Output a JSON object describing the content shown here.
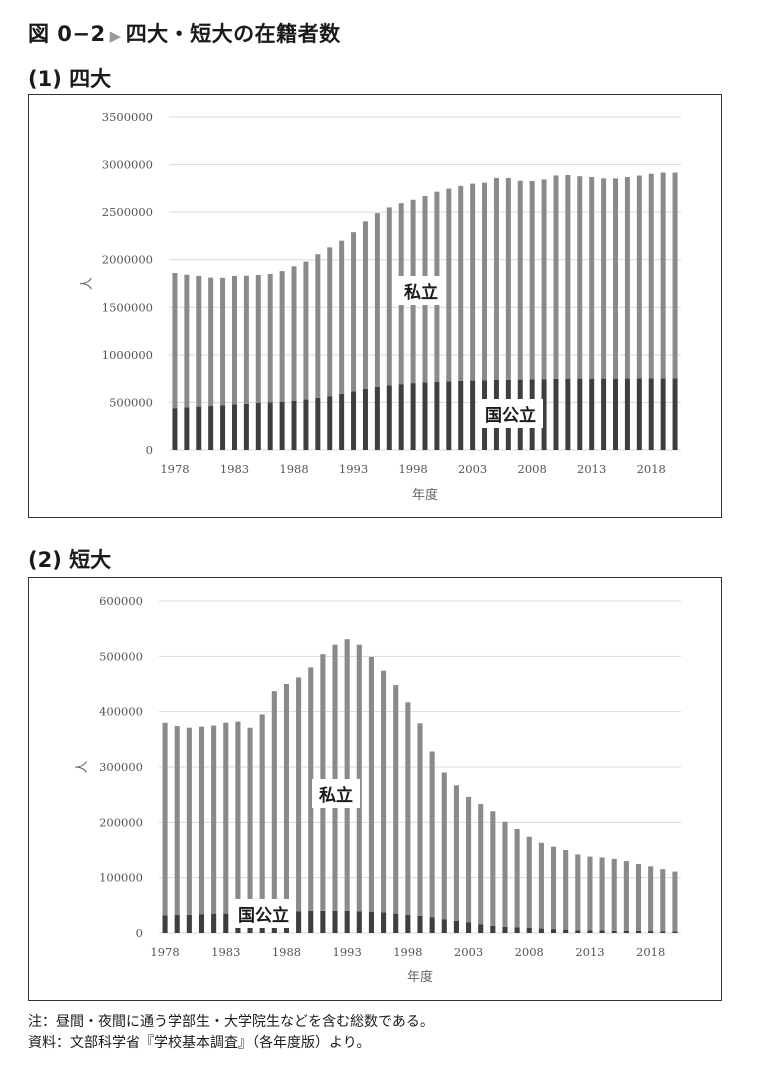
{
  "page": {
    "title_prefix": "図 0−2",
    "title_arrow": "▶",
    "title_main": "四大・短大の在籍者数",
    "notes": [
      "注：昼間・夜間に通う学部生・大学院生などを含む総数である。",
      "資料：文部科学省『学校基本調査』（各年度版）より。"
    ]
  },
  "chart_data": [
    {
      "type": "bar",
      "stacked": true,
      "section_title": "(1) 四大",
      "xlabel": "年度",
      "ylabel": "人",
      "ylim": [
        0,
        3500000
      ],
      "yticks": [
        0,
        500000,
        1000000,
        1500000,
        2000000,
        2500000,
        3000000,
        3500000
      ],
      "xticks": [
        "1978",
        "1983",
        "1988",
        "1993",
        "1998",
        "2003",
        "2008",
        "2013",
        "2018"
      ],
      "grid": true,
      "categories": [
        1978,
        1979,
        1980,
        1981,
        1982,
        1983,
        1984,
        1985,
        1986,
        1987,
        1988,
        1989,
        1990,
        1991,
        1992,
        1993,
        1994,
        1995,
        1996,
        1997,
        1998,
        1999,
        2000,
        2001,
        2002,
        2003,
        2004,
        2005,
        2006,
        2007,
        2008,
        2009,
        2010,
        2011,
        2012,
        2013,
        2014,
        2015,
        2016,
        2017,
        2018,
        2019,
        2020
      ],
      "series": [
        {
          "name": "国公立",
          "color": "#3e3e3e",
          "values": [
            440000,
            448000,
            456000,
            462000,
            470000,
            478000,
            486000,
            494000,
            500000,
            508000,
            518000,
            530000,
            548000,
            566000,
            590000,
            616000,
            642000,
            664000,
            680000,
            692000,
            703000,
            712000,
            718000,
            722000,
            726000,
            730000,
            733000,
            736000,
            738000,
            740000,
            742000,
            744000,
            748000,
            750000,
            750000,
            750000,
            750000,
            750000,
            751000,
            752000,
            752000,
            753000,
            752000
          ]
        },
        {
          "name": "私立",
          "color": "#8a8a8a",
          "values": [
            1420000,
            1394000,
            1374000,
            1350000,
            1340000,
            1352000,
            1346000,
            1346000,
            1350000,
            1372000,
            1412000,
            1450000,
            1510000,
            1564000,
            1610000,
            1674000,
            1762000,
            1826000,
            1870000,
            1902000,
            1927000,
            1958000,
            1997000,
            2026000,
            2050000,
            2070000,
            2077000,
            2124000,
            2121000,
            2090000,
            2086000,
            2100000,
            2138000,
            2140000,
            2128000,
            2120000,
            2105000,
            2105000,
            2119000,
            2133000,
            2152000,
            2163000,
            2164000
          ]
        }
      ]
    },
    {
      "type": "bar",
      "stacked": true,
      "section_title": "(2) 短大",
      "xlabel": "年度",
      "ylabel": "人",
      "ylim": [
        0,
        600000
      ],
      "yticks": [
        0,
        100000,
        200000,
        300000,
        400000,
        500000,
        600000
      ],
      "xticks": [
        "1978",
        "1983",
        "1988",
        "1993",
        "1998",
        "2003",
        "2008",
        "2013",
        "2018"
      ],
      "grid": true,
      "categories": [
        1978,
        1979,
        1980,
        1981,
        1982,
        1983,
        1984,
        1985,
        1986,
        1987,
        1988,
        1989,
        1990,
        1991,
        1992,
        1993,
        1994,
        1995,
        1996,
        1997,
        1998,
        1999,
        2000,
        2001,
        2002,
        2003,
        2004,
        2005,
        2006,
        2007,
        2008,
        2009,
        2010,
        2011,
        2012,
        2013,
        2014,
        2015,
        2016,
        2017,
        2018,
        2019,
        2020
      ],
      "series": [
        {
          "name": "国公立",
          "color": "#3e3e3e",
          "values": [
            32000,
            33000,
            33000,
            34000,
            35000,
            35000,
            36000,
            36000,
            36000,
            37000,
            38000,
            39000,
            40000,
            40000,
            40000,
            40000,
            39000,
            38000,
            37000,
            35000,
            33000,
            31000,
            28000,
            25000,
            22000,
            19000,
            16000,
            13000,
            11000,
            10000,
            9000,
            8000,
            7000,
            6000,
            5000,
            5000,
            4500,
            4000,
            4000,
            3800,
            3500,
            3300,
            3000
          ]
        },
        {
          "name": "私立",
          "color": "#8a8a8a",
          "values": [
            348000,
            341000,
            338000,
            339000,
            340000,
            345000,
            346000,
            335000,
            359000,
            400000,
            412000,
            423000,
            440000,
            464000,
            481000,
            491000,
            482000,
            461000,
            437000,
            413000,
            384000,
            348000,
            300000,
            265000,
            245000,
            227000,
            217000,
            207000,
            190000,
            178000,
            165000,
            155000,
            149000,
            144000,
            137000,
            133000,
            132000,
            130000,
            126000,
            121000,
            117000,
            112000,
            108000
          ]
        }
      ]
    }
  ]
}
